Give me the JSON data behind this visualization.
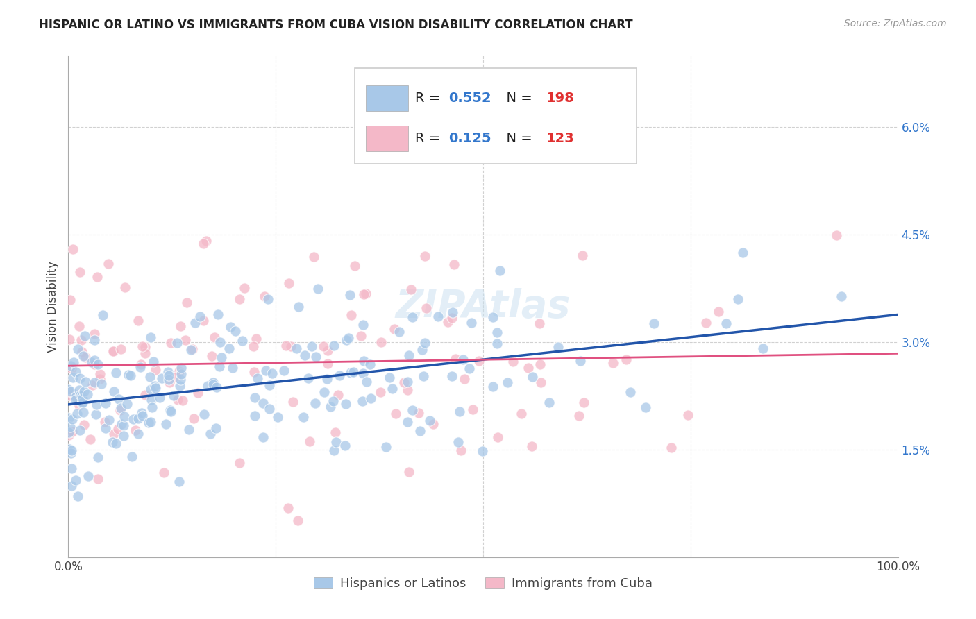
{
  "title": "HISPANIC OR LATINO VS IMMIGRANTS FROM CUBA VISION DISABILITY CORRELATION CHART",
  "source": "Source: ZipAtlas.com",
  "ylabel": "Vision Disability",
  "watermark": "ZIPAtlas",
  "r_blue": 0.552,
  "n_blue": 198,
  "r_pink": 0.125,
  "n_pink": 123,
  "blue_color": "#a8c8e8",
  "pink_color": "#f4b8c8",
  "blue_line_color": "#2255aa",
  "pink_line_color": "#e05080",
  "legend_blue_label": "Hispanics or Latinos",
  "legend_pink_label": "Immigrants from Cuba",
  "xlim": [
    0,
    100
  ],
  "ylim": [
    0,
    7.0
  ],
  "yticks": [
    1.5,
    3.0,
    4.5,
    6.0
  ],
  "ytick_labels": [
    "1.5%",
    "3.0%",
    "4.5%",
    "6.0%"
  ],
  "xticks": [
    0,
    25,
    50,
    75,
    100
  ],
  "xtick_labels": [
    "0.0%",
    "",
    "",
    "",
    "100.0%"
  ],
  "blue_seed": 12,
  "pink_seed": 37,
  "blue_intercept": 2.1,
  "blue_slope": 0.014,
  "blue_noise_std": 0.52,
  "pink_intercept": 2.65,
  "pink_slope": 0.003,
  "pink_noise_std": 0.85,
  "title_fontsize": 12,
  "tick_fontsize": 12,
  "ylabel_fontsize": 12,
  "source_fontsize": 10,
  "legend_fontsize": 14,
  "watermark_fontsize": 40,
  "watermark_color": "#c8dff0",
  "watermark_alpha": 0.5
}
